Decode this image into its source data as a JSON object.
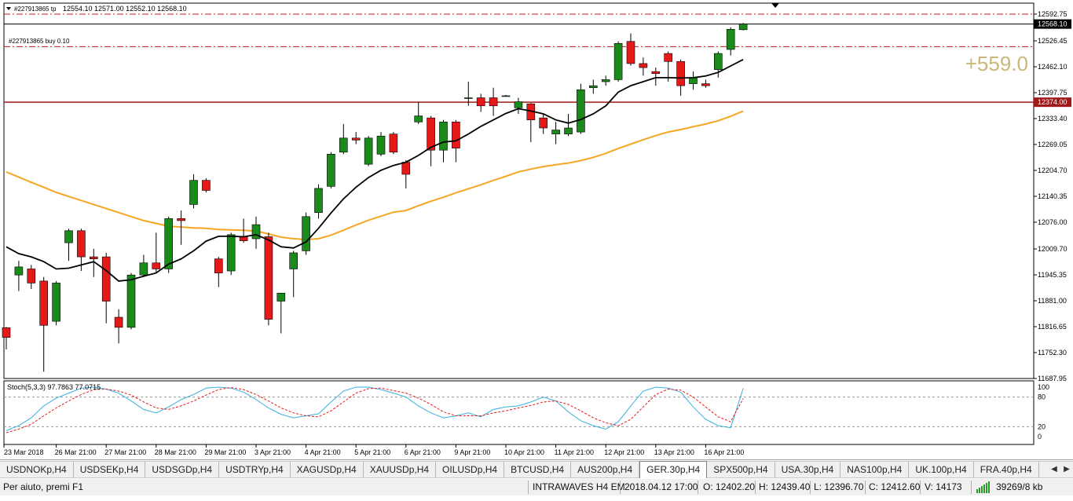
{
  "chart": {
    "header_text": "12554.10 12571.00 12552.10 12568.10",
    "header_label": "#227913865 tp",
    "order_label": "#227913865 buy 0.10",
    "profit": "+559.0",
    "price_axis": [
      "12592.75",
      "12526.45",
      "12462.10",
      "12397.75",
      "12333.40",
      "12269.05",
      "12204.70",
      "12140.35",
      "12076.00",
      "12009.70",
      "11945.35",
      "11881.00",
      "11816.65",
      "11752.30",
      "11687.95"
    ],
    "current_price": "12568.10",
    "entry_price": "12374.00",
    "stoch_label": "Stoch(5,3,3) 97.7863 77.0715",
    "stoch_axis": [
      "100",
      "80",
      "20",
      "0"
    ],
    "time_axis": [
      "23 Mar 2018",
      "26 Mar 21:00",
      "27 Mar 21:00",
      "28 Mar 21:00",
      "29 Mar 21:00",
      "3 Apr 21:00",
      "4 Apr 21:00",
      "5 Apr 21:00",
      "6 Apr 21:00",
      "9 Apr 21:00",
      "10 Apr 21:00",
      "11 Apr 21:00",
      "12 Apr 21:00",
      "13 Apr 21:00",
      "16 Apr 21:00"
    ],
    "colors": {
      "bull": "#1a8a1a",
      "bear": "#e61919",
      "ma_fast": "#000000",
      "ma_slow": "#f5a623",
      "stoch_main": "#3ab0e0",
      "stoch_signal": "#e61919",
      "entry_line": "#a01818"
    }
  },
  "chart_data": {
    "type": "candlestick",
    "candles": [
      [
        11814,
        11790,
        11816,
        11760
      ],
      [
        11945,
        11965,
        11980,
        11905
      ],
      [
        11960,
        11925,
        11970,
        11910
      ],
      [
        11930,
        11820,
        11940,
        11705
      ],
      [
        11830,
        11925,
        11930,
        11820
      ],
      [
        12025,
        12055,
        12060,
        11980
      ],
      [
        12055,
        11990,
        12060,
        11955
      ],
      [
        11990,
        11985,
        12010,
        11940
      ],
      [
        11990,
        11880,
        12000,
        11825
      ],
      [
        11840,
        11815,
        11860,
        11775
      ],
      [
        11815,
        11945,
        11950,
        11810
      ],
      [
        11945,
        11975,
        11995,
        11940
      ],
      [
        11975,
        11960,
        12050,
        11950
      ],
      [
        11960,
        12085,
        12090,
        11950
      ],
      [
        12085,
        12080,
        12105,
        12020
      ],
      [
        12120,
        12180,
        12195,
        12110
      ],
      [
        12180,
        12155,
        12185,
        12150
      ],
      [
        11985,
        11950,
        11990,
        11915
      ],
      [
        11955,
        12045,
        12050,
        11945
      ],
      [
        12040,
        12030,
        12085,
        12025
      ],
      [
        12035,
        12070,
        12090,
        12010
      ],
      [
        12040,
        11835,
        12050,
        11820
      ],
      [
        11880,
        11900,
        11900,
        11800
      ],
      [
        11960,
        12000,
        12005,
        11890
      ],
      [
        12005,
        12090,
        12100,
        11995
      ],
      [
        12100,
        12160,
        12170,
        12085
      ],
      [
        12165,
        12245,
        12250,
        12160
      ],
      [
        12250,
        12285,
        12320,
        12245
      ],
      [
        12285,
        12280,
        12300,
        12270
      ],
      [
        12220,
        12285,
        12290,
        12215
      ],
      [
        12245,
        12290,
        12300,
        12240
      ],
      [
        12295,
        12250,
        12300,
        12245
      ],
      [
        12225,
        12195,
        12230,
        12160
      ],
      [
        12325,
        12340,
        12375,
        12320
      ],
      [
        12335,
        12255,
        12340,
        12215
      ],
      [
        12255,
        12325,
        12330,
        12225
      ],
      [
        12325,
        12260,
        12330,
        12225
      ],
      [
        12385,
        12385,
        12425,
        12365
      ],
      [
        12385,
        12365,
        12395,
        12350
      ],
      [
        12385,
        12365,
        12410,
        12340
      ],
      [
        12390,
        12390,
        12392,
        12388
      ],
      [
        12360,
        12375,
        12385,
        12345
      ],
      [
        12370,
        12330,
        12372,
        12275
      ],
      [
        12335,
        12310,
        12345,
        12295
      ],
      [
        12295,
        12305,
        12325,
        12270
      ],
      [
        12295,
        12310,
        12345,
        12290
      ],
      [
        12300,
        12405,
        12420,
        12295
      ],
      [
        12410,
        12415,
        12430,
        12395
      ],
      [
        12425,
        12430,
        12440,
        12415
      ],
      [
        12430,
        12520,
        12525,
        12425
      ],
      [
        12525,
        12470,
        12545,
        12465
      ],
      [
        12470,
        12460,
        12485,
        12440
      ],
      [
        12450,
        12445,
        12460,
        12415
      ],
      [
        12495,
        12475,
        12500,
        12425
      ],
      [
        12475,
        12415,
        12480,
        12390
      ],
      [
        12420,
        12435,
        12450,
        12405
      ],
      [
        12420,
        12415,
        12430,
        12410
      ],
      [
        12455,
        12495,
        12500,
        12435
      ],
      [
        12505,
        12555,
        12560,
        12490
      ],
      [
        12554.1,
        12568.1,
        12571,
        12552.1
      ]
    ],
    "ma_fast": [
      12015,
      11998,
      11990,
      11978,
      11960,
      11962,
      11970,
      11978,
      11956,
      11930,
      11933,
      11942,
      11950,
      11972,
      11985,
      12005,
      12029,
      12041,
      12041,
      12040,
      12045,
      12032,
      12015,
      12012,
      12027,
      12061,
      12099,
      12134,
      12163,
      12187,
      12205,
      12217,
      12225,
      12242,
      12262,
      12275,
      12278,
      12295,
      12314,
      12330,
      12346,
      12358,
      12352,
      12345,
      12330,
      12322,
      12331,
      12345,
      12365,
      12399,
      12415,
      12425,
      12435,
      12435,
      12434,
      12435,
      12439,
      12448,
      12464,
      12480
    ],
    "ma_slow": [
      12201,
      12188,
      12175,
      12163,
      12150,
      12140,
      12130,
      12120,
      12110,
      12100,
      12090,
      12080,
      12073,
      12066,
      12064,
      12062,
      12061,
      12058,
      12057,
      12056,
      12054,
      12047,
      12039,
      12035,
      12033,
      12035,
      12044,
      12056,
      12069,
      12081,
      12091,
      12101,
      12105,
      12117,
      12128,
      12138,
      12149,
      12159,
      12169,
      12180,
      12190,
      12201,
      12208,
      12214,
      12219,
      12223,
      12229,
      12237,
      12247,
      12259,
      12270,
      12281,
      12291,
      12300,
      12306,
      12313,
      12320,
      12328,
      12339,
      12352
    ],
    "stoch_main": [
      12,
      22,
      38,
      62,
      78,
      88,
      98,
      100,
      96,
      88,
      72,
      55,
      48,
      60,
      75,
      85,
      98,
      100,
      98,
      90,
      75,
      58,
      45,
      38,
      42,
      46,
      70,
      92,
      100,
      100,
      95,
      88,
      80,
      62,
      48,
      38,
      42,
      48,
      40,
      55,
      60,
      62,
      70,
      80,
      72,
      50,
      32,
      22,
      15,
      30,
      62,
      92,
      100,
      98,
      90,
      60,
      35,
      22,
      18,
      97.7863
    ],
    "stoch_signal": [
      8,
      15,
      25,
      42,
      58,
      72,
      85,
      95,
      96,
      92,
      84,
      70,
      58,
      55,
      62,
      72,
      84,
      95,
      99,
      95,
      85,
      72,
      58,
      48,
      42,
      40,
      52,
      70,
      88,
      97,
      98,
      93,
      88,
      78,
      65,
      50,
      42,
      42,
      42,
      48,
      52,
      58,
      63,
      70,
      72,
      65,
      52,
      38,
      28,
      22,
      35,
      60,
      85,
      96,
      94,
      80,
      60,
      40,
      30,
      77.0715
    ],
    "ylim": [
      11687.95,
      12620
    ],
    "entry_price": 12374.0,
    "take_profit": 12592.75,
    "stop_level": 12512
  },
  "tabs": [
    "USDNOKp,H4",
    "USDSEKp,H4",
    "USDSGDp,H4",
    "USDTRYp,H4",
    "XAGUSDp,H4",
    "XAUUSDp,H4",
    "OILUSDp,H4",
    "BTCUSD,H4",
    "AUS200p,H4",
    "GER.30p,H4",
    "SPX500p,H4",
    "USA.30p,H4",
    "NAS100p,H4",
    "UK.100p,H4",
    "FRA.40p,H4"
  ],
  "active_tab": 9,
  "tab_arrow_left": "◀",
  "tab_arrow_right": "▶",
  "status": {
    "help": "Per aiuto, premi F1",
    "profile": "INTRAWAVES H4 EM",
    "datetime": "2018.04.12 17:00",
    "open": "O: 12402.20",
    "high": "H: 12439.40",
    "low": "L: 12396.70",
    "close": "C: 12412.60",
    "volume": "V: 14173",
    "traffic": "39269/8 kb"
  }
}
